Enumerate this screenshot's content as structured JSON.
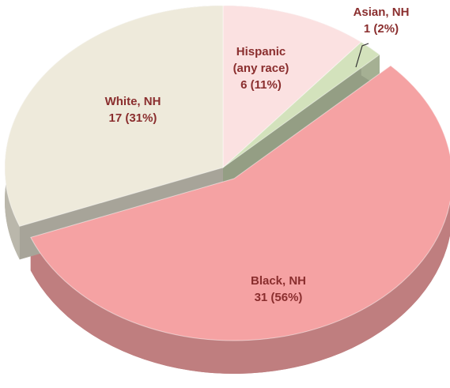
{
  "chart_data": {
    "type": "pie",
    "categories": [
      "Hispanic\n(any race)",
      "Asian, NH",
      "Black, NH",
      "White, NH"
    ],
    "values": [
      6,
      1,
      31,
      17
    ],
    "value_labels": [
      "6 (11%)",
      "1 (2%)",
      "31 (56%)",
      "17 (31%)"
    ],
    "colors": [
      "#fbe1e1",
      "#d3e2bc",
      "#f5a2a3",
      "#eeeadb"
    ]
  }
}
